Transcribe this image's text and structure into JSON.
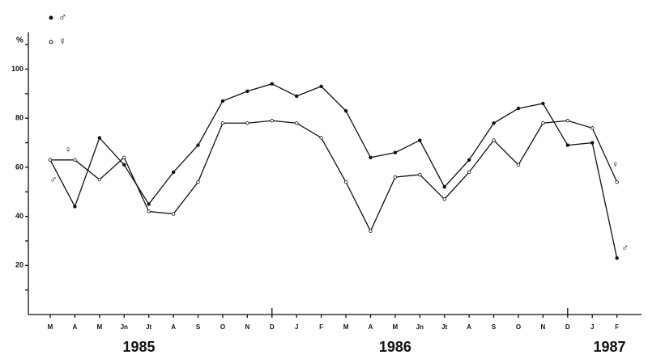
{
  "chart_data": {
    "type": "line",
    "y_label": "%",
    "categories": [
      "M",
      "A",
      "M",
      "Jn",
      "Jt",
      "A",
      "S",
      "O",
      "N",
      "D",
      "J",
      "F",
      "M",
      "A",
      "M",
      "Jn",
      "Jt",
      "A",
      "S",
      "O",
      "N",
      "D",
      "J",
      "F"
    ],
    "years": [
      "1985",
      "1986",
      "1987"
    ],
    "series": [
      {
        "name": "♂",
        "color": "#111",
        "marker": "filled",
        "values": [
          63,
          44,
          72,
          61,
          45,
          58,
          69,
          87,
          91,
          94,
          89,
          93,
          83,
          64,
          66,
          71,
          52,
          63,
          78,
          84,
          86,
          69,
          70,
          23
        ]
      },
      {
        "name": "♀",
        "color": "#111",
        "marker": "open",
        "values": [
          63,
          63,
          55,
          64,
          42,
          41,
          54,
          78,
          78,
          79,
          78,
          72,
          54,
          34,
          56,
          57,
          47,
          58,
          71,
          61,
          78,
          79,
          76,
          54
        ]
      }
    ],
    "ylim": [
      0,
      115
    ],
    "yticks": [
      20,
      40,
      60,
      80,
      100
    ],
    "minor_yticks": [
      10,
      30,
      50,
      70,
      90,
      110
    ]
  }
}
